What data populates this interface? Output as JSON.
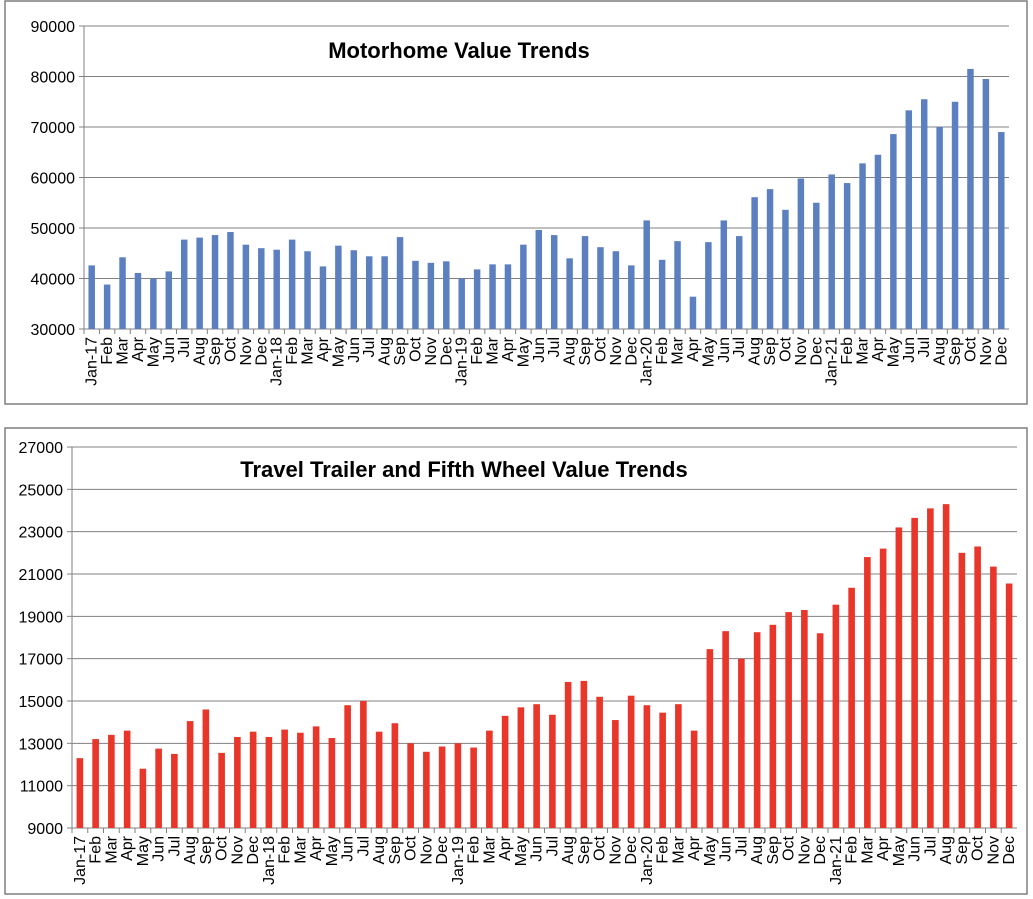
{
  "chart_data": [
    {
      "type": "bar",
      "title": "Motorhome Value Trends",
      "xlabel": "",
      "ylabel": "",
      "ylim": [
        30000,
        90000
      ],
      "yticks": [
        "30000",
        "40000",
        "50000",
        "60000",
        "70000",
        "80000",
        "90000"
      ],
      "grid": true,
      "legend": "none",
      "color": "#5b7fbf",
      "categories": [
        "Jan-17",
        "Feb",
        "Mar",
        "Apr",
        "May",
        "Jun",
        "Jul",
        "Aug",
        "Sep",
        "Oct",
        "Nov",
        "Dec",
        "Jan-18",
        "Feb",
        "Mar",
        "Apr",
        "May",
        "Jun",
        "Jul",
        "Aug",
        "Sep",
        "Oct",
        "Nov",
        "Dec",
        "Jan-19",
        "Feb",
        "Mar",
        "Apr",
        "May",
        "Jun",
        "Jul",
        "Aug",
        "Sep",
        "Oct",
        "Nov",
        "Dec",
        "Jan-20",
        "Feb",
        "Mar",
        "Apr",
        "May",
        "Jun",
        "Jul",
        "Aug",
        "Sep",
        "Oct",
        "Nov",
        "Dec",
        "Jan-21",
        "Feb",
        "Mar",
        "Apr",
        "May",
        "Jun",
        "Jul",
        "Aug",
        "Sep",
        "Oct",
        "Nov",
        "Dec"
      ],
      "values": [
        42600,
        38800,
        44200,
        41100,
        40000,
        41400,
        47700,
        48100,
        48600,
        49200,
        46700,
        46000,
        45700,
        47700,
        45400,
        42400,
        46500,
        45600,
        44400,
        44400,
        48200,
        43500,
        43100,
        43400,
        40000,
        41800,
        42800,
        42800,
        46700,
        49600,
        48600,
        44000,
        48400,
        46200,
        45400,
        42600,
        51500,
        43700,
        47400,
        36400,
        47200,
        51500,
        48400,
        56100,
        57700,
        53600,
        59800,
        55000,
        60600,
        58900,
        62800,
        64500,
        68600,
        73300,
        75500,
        70000,
        75000,
        81500,
        79500,
        69000
      ]
    },
    {
      "type": "bar",
      "title": "Travel Trailer and Fifth Wheel Value Trends",
      "xlabel": "",
      "ylabel": "",
      "ylim": [
        9000,
        27000
      ],
      "yticks": [
        "9000",
        "11000",
        "13000",
        "15000",
        "17000",
        "19000",
        "21000",
        "23000",
        "25000",
        "27000"
      ],
      "grid": true,
      "legend": "none",
      "color": "#e8362a",
      "categories": [
        "Jan-17",
        "Feb",
        "Mar",
        "Apr",
        "May",
        "Jun",
        "Jul",
        "Aug",
        "Sep",
        "Oct",
        "Nov",
        "Dec",
        "Jan-18",
        "Feb",
        "Mar",
        "Apr",
        "May",
        "Jun",
        "Jul",
        "Aug",
        "Sep",
        "Oct",
        "Nov",
        "Dec",
        "Jan-19",
        "Feb",
        "Mar",
        "Apr",
        "May",
        "Jun",
        "Jul",
        "Aug",
        "Sep",
        "Oct",
        "Nov",
        "Dec",
        "Jan-20",
        "Feb",
        "Mar",
        "Apr",
        "May",
        "Jun",
        "Jul",
        "Aug",
        "Sep",
        "Oct",
        "Nov",
        "Dec",
        "Jan-21",
        "Feb",
        "Mar",
        "Apr",
        "May",
        "Jun",
        "Jul",
        "Aug",
        "Sep",
        "Oct",
        "Nov",
        "Dec"
      ],
      "values": [
        12300,
        13200,
        13400,
        13600,
        11800,
        12750,
        12500,
        14050,
        14600,
        12550,
        13300,
        13550,
        13300,
        13650,
        13500,
        13800,
        13250,
        14800,
        15000,
        13550,
        13950,
        13000,
        12600,
        12850,
        13000,
        12800,
        13600,
        14300,
        14700,
        14850,
        14350,
        15900,
        15950,
        15200,
        14100,
        15250,
        14800,
        14450,
        14850,
        13600,
        17450,
        18300,
        17000,
        18250,
        18600,
        19200,
        19300,
        18200,
        19550,
        20350,
        21800,
        22200,
        23200,
        23650,
        24100,
        24300,
        22000,
        22300,
        21350,
        20550
      ]
    }
  ]
}
